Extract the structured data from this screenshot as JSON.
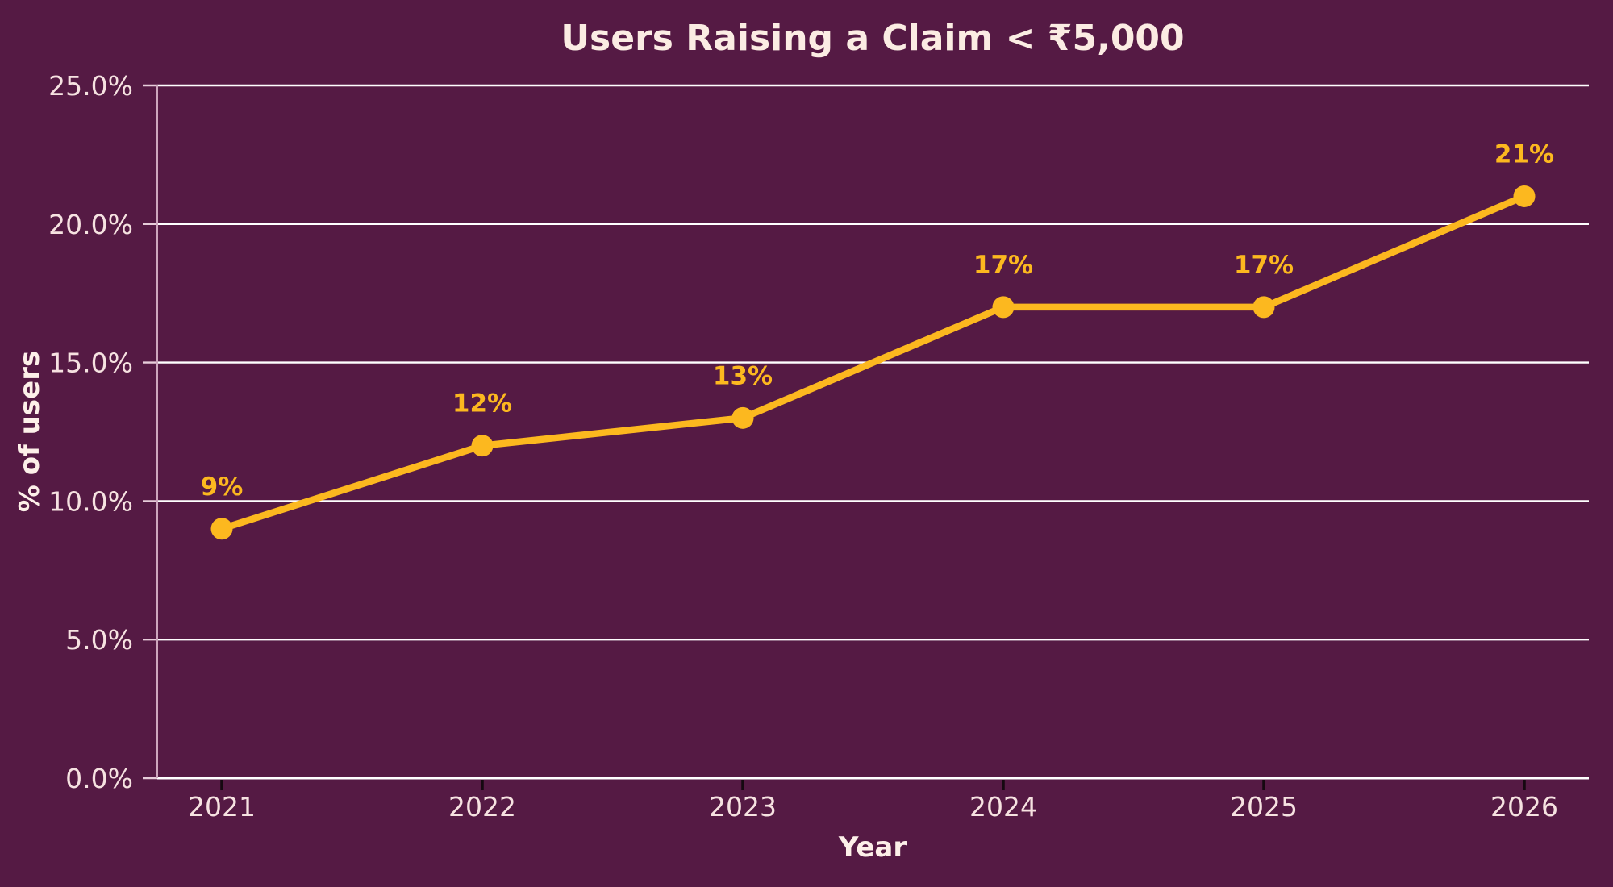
{
  "chart_data": {
    "type": "line",
    "title": "Users Raising a Claim < ₹5,000",
    "xlabel": "Year",
    "ylabel": "% of users",
    "categories": [
      "2021",
      "2022",
      "2023",
      "2024",
      "2025",
      "2026"
    ],
    "series": [
      {
        "name": "Users raising a claim under ₹5,000",
        "values": [
          9,
          12,
          13,
          17,
          17,
          21
        ],
        "point_labels": [
          "9%",
          "12%",
          "13%",
          "17%",
          "17%",
          "21%"
        ]
      }
    ],
    "ylim": [
      0,
      25
    ],
    "yticks": [
      0,
      5,
      10,
      15,
      20,
      25
    ],
    "ytick_labels": [
      "0.0%",
      "5.0%",
      "10.0%",
      "15.0%",
      "20.0%",
      "25.0%"
    ],
    "grid": "horizontal",
    "legend": false,
    "colors": {
      "background": "#551a44",
      "line": "#fcb81f",
      "marker": "#fcb81f",
      "data_label": "#fcb81f",
      "grid": "#ffffff",
      "axis_bottom": "#ffffff",
      "spine": "#cda6bd",
      "y_tick_mark": "#e7cdda",
      "x_tick_mark": "#150810",
      "tick_label": "#f6e2e1",
      "title": "#fbece3",
      "axis_label": "#fdf0e9"
    }
  }
}
